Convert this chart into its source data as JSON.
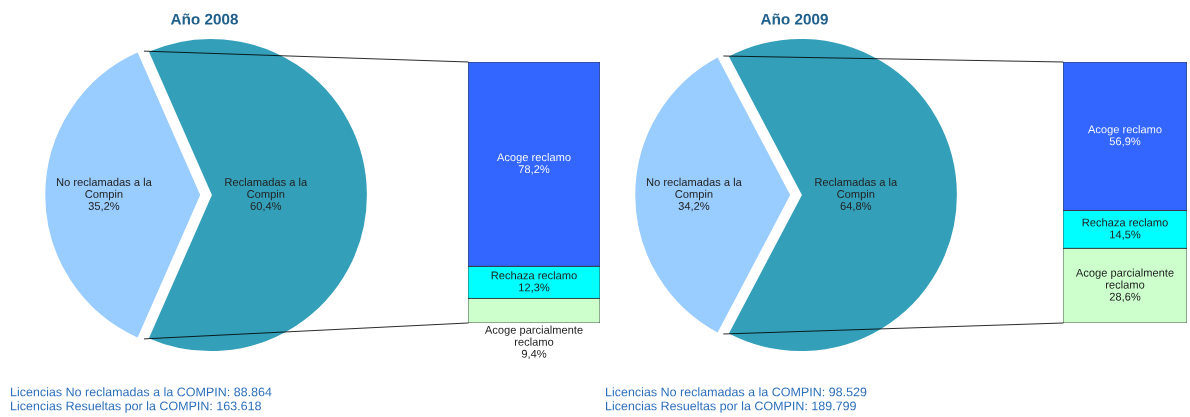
{
  "chart_data": [
    {
      "type": "pie",
      "title": "Año 2008",
      "categories": [
        "No reclamadas a la Compin",
        "Reclamadas a la Compin"
      ],
      "values": [
        35.2,
        60.4
      ],
      "value_labels": [
        "35,2%",
        "60,4%"
      ],
      "colors": [
        "#99ccff",
        "#339fb8"
      ],
      "legend": false,
      "annotations": [
        "Licencias No reclamadas a la COMPIN: 88.864",
        "Licencias Resueltas por la COMPIN: 163.618"
      ]
    },
    {
      "type": "bar",
      "stacked": true,
      "categories": [
        null
      ],
      "legend": false,
      "series": [
        {
          "name": "Acoge parcialmente reclamo",
          "color": "#ccffcc",
          "values": [
            9.4
          ],
          "value_labels": [
            "9,4%"
          ]
        },
        {
          "name": "Rechaza reclamo",
          "color": "#00ffff",
          "values": [
            12.3
          ],
          "value_labels": [
            "12,3%"
          ]
        },
        {
          "name": "Acoge reclamo",
          "color": "#3366ff",
          "values": [
            78.2
          ],
          "value_labels": [
            "78,2%"
          ]
        }
      ]
    },
    {
      "type": "pie",
      "title": "Año 2009",
      "categories": [
        "No reclamadas a la Compin",
        "Reclamadas a la Compin"
      ],
      "values": [
        34.2,
        64.8
      ],
      "value_labels": [
        "34,2%",
        "64,8%"
      ],
      "colors": [
        "#99ccff",
        "#339fb8"
      ],
      "legend": false,
      "annotations": [
        "Licencias No reclamadas a la COMPIN: 98.529",
        "Licencias Resueltas por la COMPIN: 189.799"
      ]
    },
    {
      "type": "bar",
      "stacked": true,
      "categories": [
        null
      ],
      "legend": false,
      "series": [
        {
          "name": "Acoge parcialmente reclamo",
          "color": "#ccffcc",
          "values": [
            28.6
          ],
          "value_labels": [
            "28,6%"
          ]
        },
        {
          "name": "Rechaza reclamo",
          "color": "#00ffff",
          "values": [
            14.5
          ],
          "value_labels": [
            "14,5%"
          ]
        },
        {
          "name": "Acoge reclamo",
          "color": "#3366ff",
          "values": [
            56.9
          ],
          "value_labels": [
            "56,9%"
          ]
        }
      ]
    }
  ]
}
